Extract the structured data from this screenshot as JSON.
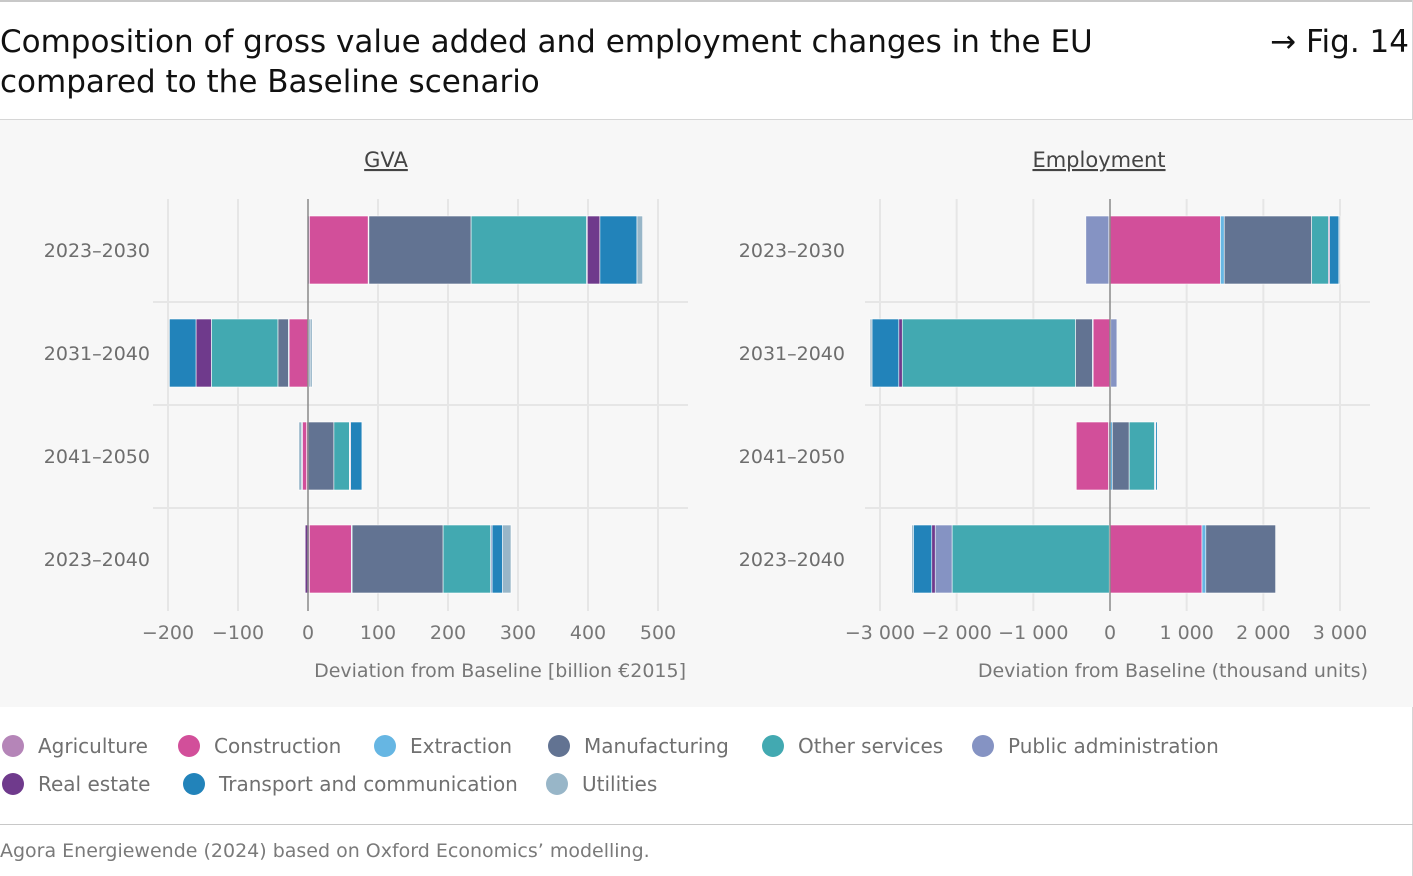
{
  "header": {
    "title": "Composition of gross value added and employment changes in the EU compared to the Baseline scenario",
    "fig_label": "→ Fig. 14"
  },
  "source": "Agora Energiewende (2024) based on Oxford Economics’ modelling.",
  "sectors": [
    {
      "key": "agri",
      "name": "Agriculture",
      "color": "#b585b8"
    },
    {
      "key": "cons",
      "name": "Construction",
      "color": "#d24f9a"
    },
    {
      "key": "extr",
      "name": "Extraction",
      "color": "#66b6e3"
    },
    {
      "key": "manu",
      "name": "Manufacturing",
      "color": "#627392"
    },
    {
      "key": "othr",
      "name": "Other services",
      "color": "#42a9b1"
    },
    {
      "key": "pubad",
      "name": "Public administration",
      "color": "#8593c3"
    },
    {
      "key": "real",
      "name": "Real estate",
      "color": "#6f3a8c"
    },
    {
      "key": "trans",
      "name": "Transport and communication",
      "color": "#2283ba"
    },
    {
      "key": "util",
      "name": "Utilities",
      "color": "#98b6c8"
    }
  ],
  "chart_data": [
    {
      "type": "bar",
      "orientation": "horizontal",
      "stacked": true,
      "title": "GVA",
      "xlabel": "Deviation from Baseline [billion €2015]",
      "xlim": [
        -200,
        500
      ],
      "xticks": [
        -200,
        -100,
        0,
        100,
        200,
        300,
        400,
        500
      ],
      "xtick_labels": [
        "−200",
        "−100",
        "0",
        "100",
        "200",
        "300",
        "400",
        "500"
      ],
      "categories": [
        "2023–2030",
        "2031–2040",
        "2041–2050",
        "2023–2040"
      ],
      "series": [
        {
          "name": "Agriculture",
          "values": [
            2,
            1,
            -2,
            2
          ]
        },
        {
          "name": "Construction",
          "values": [
            84,
            -27,
            -6,
            60
          ]
        },
        {
          "name": "Extraction",
          "values": [
            1,
            -1,
            -1,
            1
          ]
        },
        {
          "name": "Manufacturing",
          "values": [
            146,
            -15,
            37,
            130
          ]
        },
        {
          "name": "Other services",
          "values": [
            165,
            -95,
            22,
            68
          ]
        },
        {
          "name": "Public administration",
          "values": [
            1,
            2,
            1,
            2
          ]
        },
        {
          "name": "Real estate",
          "values": [
            18,
            -22,
            1,
            -4
          ]
        },
        {
          "name": "Transport and communication",
          "values": [
            53,
            -38,
            16,
            15
          ]
        },
        {
          "name": "Utilities",
          "values": [
            8,
            3,
            -4,
            12
          ]
        }
      ]
    },
    {
      "type": "bar",
      "orientation": "horizontal",
      "stacked": true,
      "title": "Employment",
      "xlabel": "Deviation from Baseline (thousand units)",
      "xlim": [
        -3000,
        3000
      ],
      "xticks": [
        -3000,
        -2000,
        -1000,
        0,
        1000,
        2000,
        3000
      ],
      "xtick_labels": [
        "−3 000",
        "−2 000",
        "−1 000",
        "0",
        "1 000",
        "2 000",
        "3 000"
      ],
      "categories": [
        "2023–2030",
        "2031–2040",
        "2041–2050",
        "2023–2040"
      ],
      "series": [
        {
          "name": "Agriculture",
          "values": [
            -15,
            10,
            -20,
            -10
          ]
        },
        {
          "name": "Construction",
          "values": [
            1440,
            -220,
            -420,
            1200
          ]
        },
        {
          "name": "Extraction",
          "values": [
            50,
            -10,
            30,
            50
          ]
        },
        {
          "name": "Manufacturing",
          "values": [
            1140,
            -220,
            220,
            910
          ]
        },
        {
          "name": "Other services",
          "values": [
            220,
            -2260,
            330,
            -2050
          ]
        },
        {
          "name": "Public administration",
          "values": [
            -300,
            80,
            10,
            -220
          ]
        },
        {
          "name": "Real estate",
          "values": [
            15,
            -45,
            5,
            -45
          ]
        },
        {
          "name": "Transport and communication",
          "values": [
            120,
            -350,
            20,
            -240
          ]
        },
        {
          "name": "Utilities",
          "values": [
            15,
            -25,
            0,
            -20
          ]
        }
      ]
    }
  ]
}
